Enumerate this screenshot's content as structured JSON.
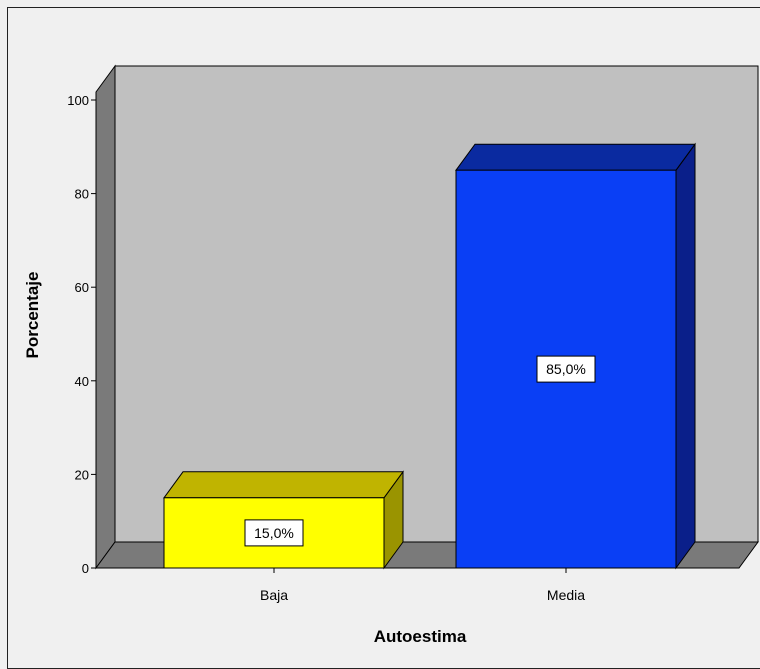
{
  "chart_data": {
    "type": "bar",
    "style": "3d",
    "categories": [
      "Baja",
      "Media"
    ],
    "values": [
      15.0,
      85.0
    ],
    "data_labels": [
      "15,0%",
      "85,0%"
    ],
    "title": "",
    "xlabel": "Autoestima",
    "ylabel": "Porcentaje",
    "ylim": [
      0,
      100
    ],
    "yticks": [
      0,
      20,
      40,
      60,
      80,
      100
    ],
    "grid": false,
    "colors": {
      "Baja": {
        "front": "#ffff00",
        "top": "#c0b400",
        "side": "#9a9400"
      },
      "Media": {
        "front": "#0a3ff5",
        "top": "#0a2aa0",
        "side": "#0a1f8a"
      },
      "back_wall": "#c0c0c0",
      "side_wall": "#7a7a7a",
      "floor": "#7a7a7a",
      "background": "#f0f0f0"
    }
  }
}
